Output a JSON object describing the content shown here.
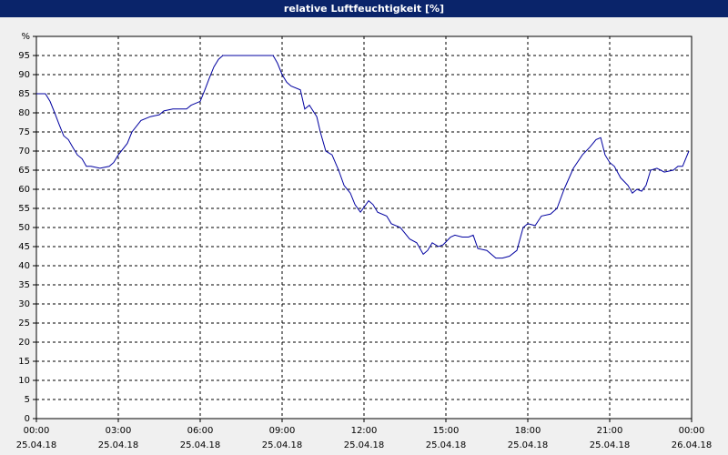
{
  "chart_data": {
    "type": "line",
    "title": "relative Luftfeuchtigkeit [%]",
    "x": [
      0,
      0.33,
      0.5,
      0.67,
      0.83,
      1,
      1.17,
      1.33,
      1.5,
      1.67,
      1.83,
      2,
      2.33,
      2.67,
      2.83,
      3,
      3.33,
      3.5,
      3.83,
      4.17,
      4.5,
      4.67,
      5,
      5.5,
      5.67,
      6,
      6.17,
      6.33,
      6.5,
      6.67,
      6.83,
      7.17,
      8.67,
      8.83,
      9,
      9.17,
      9.33,
      9.67,
      9.83,
      10,
      10.27,
      10.4,
      10.6,
      10.83,
      11.07,
      11.27,
      11.5,
      11.67,
      11.87,
      12.17,
      12.33,
      12.5,
      12.83,
      13,
      13.33,
      13.67,
      13.93,
      14.17,
      14.33,
      14.5,
      14.73,
      14.9,
      15.17,
      15.33,
      15.6,
      15.83,
      16,
      16.17,
      16.5,
      16.83,
      17.07,
      17.33,
      17.6,
      17.83,
      18,
      18.27,
      18.5,
      18.83,
      19.07,
      19.33,
      19.67,
      20,
      20.27,
      20.5,
      20.67,
      20.83,
      21,
      21.17,
      21.4,
      21.67,
      21.83,
      22,
      22.17,
      22.33,
      22.5,
      22.73,
      23,
      23.33,
      23.5,
      23.67,
      23.9
    ],
    "series": [
      {
        "name": "relative Luftfeuchtigkeit",
        "color": "#0000a0",
        "values": [
          85,
          85,
          83,
          80,
          77,
          74,
          73,
          71,
          69,
          68,
          66,
          66,
          65.5,
          66,
          67,
          69,
          72,
          75,
          78,
          79,
          79.5,
          80.5,
          81,
          81,
          82,
          83,
          86,
          89,
          92,
          94,
          95,
          95,
          95,
          93,
          90,
          88,
          87,
          86,
          81,
          82,
          79,
          75,
          70,
          69,
          65,
          61,
          59,
          56,
          54,
          57,
          56,
          54,
          53,
          51,
          50,
          47,
          46,
          43,
          44,
          46,
          45,
          45.5,
          47.5,
          48,
          47.5,
          47.5,
          48,
          44.5,
          44,
          42,
          42,
          42.5,
          44,
          50,
          51,
          50.5,
          53,
          53.5,
          55,
          60,
          65.5,
          69,
          71,
          73,
          73.5,
          69,
          67,
          66,
          63,
          61,
          59,
          60,
          59.5,
          61,
          65,
          65.5,
          64.5,
          65,
          66,
          66,
          70
        ]
      }
    ],
    "xlim": [
      0,
      24
    ],
    "xticks": [
      {
        "value": 0,
        "label": "00:00"
      },
      {
        "value": 3,
        "label": "03:00"
      },
      {
        "value": 6,
        "label": "06:00"
      },
      {
        "value": 9,
        "label": "09:00"
      },
      {
        "value": 12,
        "label": "12:00"
      },
      {
        "value": 15,
        "label": "15:00"
      },
      {
        "value": 18,
        "label": "18:00"
      },
      {
        "value": 21,
        "label": "21:00"
      },
      {
        "value": 24,
        "label": "00:00"
      }
    ],
    "xtick_dates": [
      "25.04.18",
      "25.04.18",
      "25.04.18",
      "25.04.18",
      "25.04.18",
      "25.04.18",
      "25.04.18",
      "25.04.18",
      "26.04.18"
    ],
    "ylim": [
      0,
      100
    ],
    "yticks": [
      0,
      5,
      10,
      15,
      20,
      25,
      30,
      35,
      40,
      45,
      50,
      55,
      60,
      65,
      70,
      75,
      80,
      85,
      90,
      95,
      {
        "value": 100,
        "label": "%"
      }
    ],
    "grid": true
  }
}
